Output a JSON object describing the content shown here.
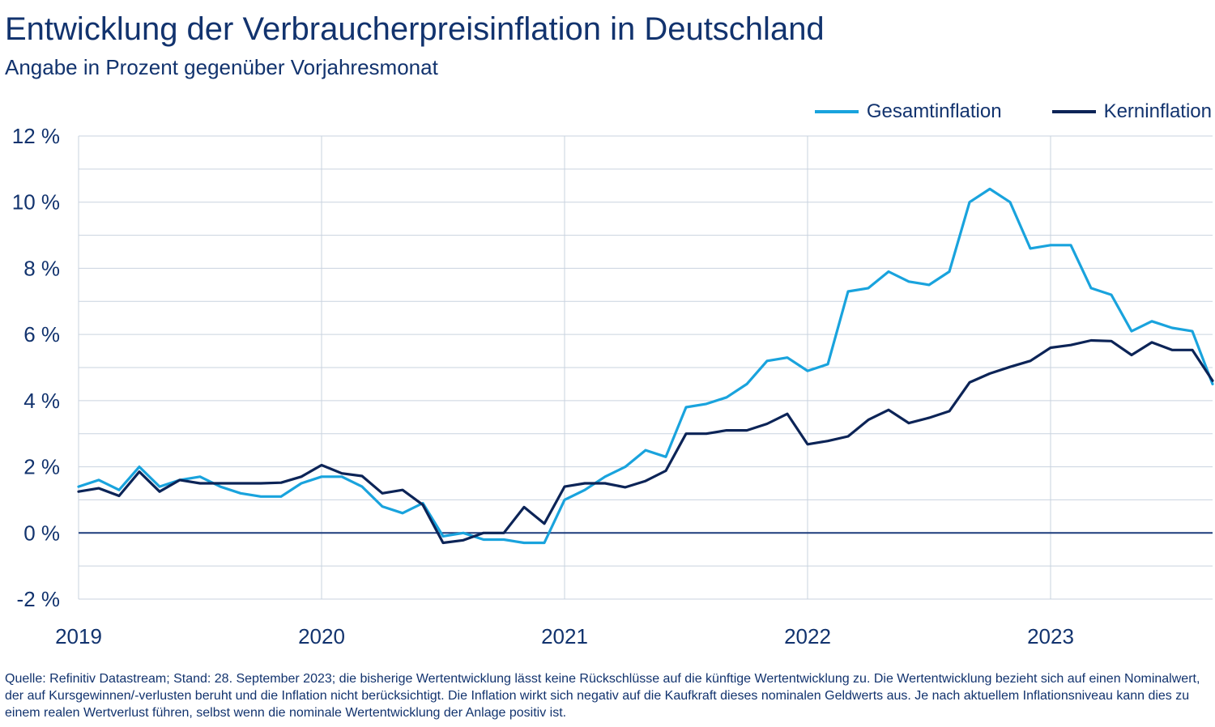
{
  "title": "Entwicklung der Verbraucherpreisinflation in Deutschland",
  "subtitle": "Angabe in Prozent gegenüber Vorjahresmonat",
  "source": "Quelle: Refinitiv Datastream; Stand: 28. September 2023; die bisherige Wertentwicklung lässt keine Rückschlüsse auf die künftige Wertentwicklung zu. Die Wertentwicklung bezieht sich auf einen Nominalwert, der auf Kursgewinnen/-verlusten beruht und die Inflation nicht berücksichtigt. Die Inflation wirkt sich negativ auf die Kaufkraft dieses nominalen Geldwerts aus. Je nach aktuellem Inflationsniveau kann dies zu einem realen Wertverlust führen, selbst wenn die nominale Wertentwicklung der Anlage positiv ist.",
  "colors": {
    "gesamt": "#19a3dd",
    "kern": "#0c2457",
    "grid": "#c9d3df",
    "zero": "#1d3c7c",
    "text": "#12336e"
  },
  "chart_data": {
    "type": "line",
    "x_start": "2019-01",
    "x_end": "2023-08",
    "x_tick_labels": [
      "2019",
      "2020",
      "2021",
      "2022",
      "2023"
    ],
    "y_tick_labels": [
      "12 %",
      "10 %",
      "8 %",
      "6 %",
      "4 %",
      "2 %",
      "0 %",
      "-2 %"
    ],
    "ylim": [
      -2,
      12
    ],
    "grid": true,
    "legend_position": "top-right",
    "series": [
      {
        "name": "Gesamtinflation",
        "color": "#19a3dd",
        "values": [
          1.4,
          1.6,
          1.3,
          2.0,
          1.4,
          1.6,
          1.7,
          1.4,
          1.2,
          1.1,
          1.1,
          1.5,
          1.7,
          1.7,
          1.4,
          0.8,
          0.6,
          0.9,
          -0.1,
          0.0,
          -0.2,
          -0.2,
          -0.3,
          -0.3,
          1.0,
          1.3,
          1.7,
          2.0,
          2.5,
          2.3,
          3.8,
          3.9,
          4.1,
          4.5,
          5.2,
          5.3,
          4.9,
          5.1,
          7.3,
          7.4,
          7.9,
          7.6,
          7.5,
          7.9,
          10.0,
          10.4,
          10.0,
          8.6,
          8.7,
          8.7,
          7.4,
          7.2,
          6.1,
          6.4,
          6.2,
          6.1,
          4.5
        ]
      },
      {
        "name": "Kerninflation",
        "color": "#0c2457",
        "values": [
          1.25,
          1.35,
          1.12,
          1.85,
          1.25,
          1.6,
          1.5,
          1.5,
          1.5,
          1.5,
          1.52,
          1.7,
          2.05,
          1.8,
          1.72,
          1.2,
          1.3,
          0.85,
          -0.3,
          -0.22,
          0.0,
          0.0,
          0.78,
          0.28,
          1.4,
          1.5,
          1.5,
          1.38,
          1.57,
          1.88,
          3.0,
          3.0,
          3.1,
          3.1,
          3.3,
          3.6,
          2.68,
          2.78,
          2.92,
          3.42,
          3.72,
          3.32,
          3.48,
          3.68,
          4.55,
          4.82,
          5.02,
          5.2,
          5.6,
          5.68,
          5.82,
          5.8,
          5.38,
          5.76,
          5.53,
          5.53,
          4.6
        ]
      }
    ]
  }
}
